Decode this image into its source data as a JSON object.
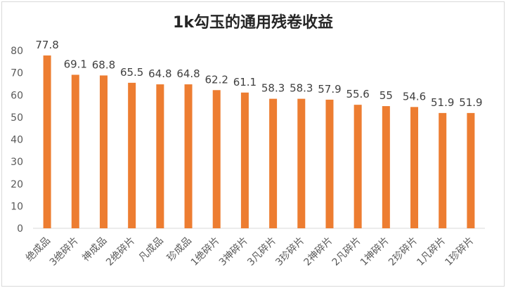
{
  "chart_data": {
    "type": "bar",
    "title": "1k勾玉的通用残卷收益",
    "categories": [
      "绝成品",
      "3绝碎片",
      "神成品",
      "2绝碎片",
      "凡成品",
      "珍成品",
      "1绝碎片",
      "3神碎片",
      "3凡碎片",
      "3珍碎片",
      "2神碎片",
      "2凡碎片",
      "1神碎片",
      "2珍碎片",
      "1凡碎片",
      "1珍碎片"
    ],
    "values": [
      77.8,
      69.1,
      68.8,
      65.5,
      64.8,
      64.8,
      62.2,
      61.1,
      58.3,
      58.3,
      57.9,
      55.6,
      55,
      54.6,
      51.9,
      51.9
    ],
    "data_labels": [
      "77.8",
      "69.1",
      "68.8",
      "65.5",
      "64.8",
      "64.8",
      "62.2",
      "61.1",
      "58.3",
      "58.3",
      "57.9",
      "55.6",
      "55",
      "54.6",
      "51.9",
      "51.9"
    ],
    "ylim": [
      0,
      80
    ],
    "yticks": [
      "0",
      "10",
      "20",
      "30",
      "40",
      "50",
      "60",
      "70",
      "80"
    ],
    "grid": false,
    "legend": "none",
    "bar_color": "#ed7d31",
    "xlabel": "",
    "ylabel": ""
  }
}
